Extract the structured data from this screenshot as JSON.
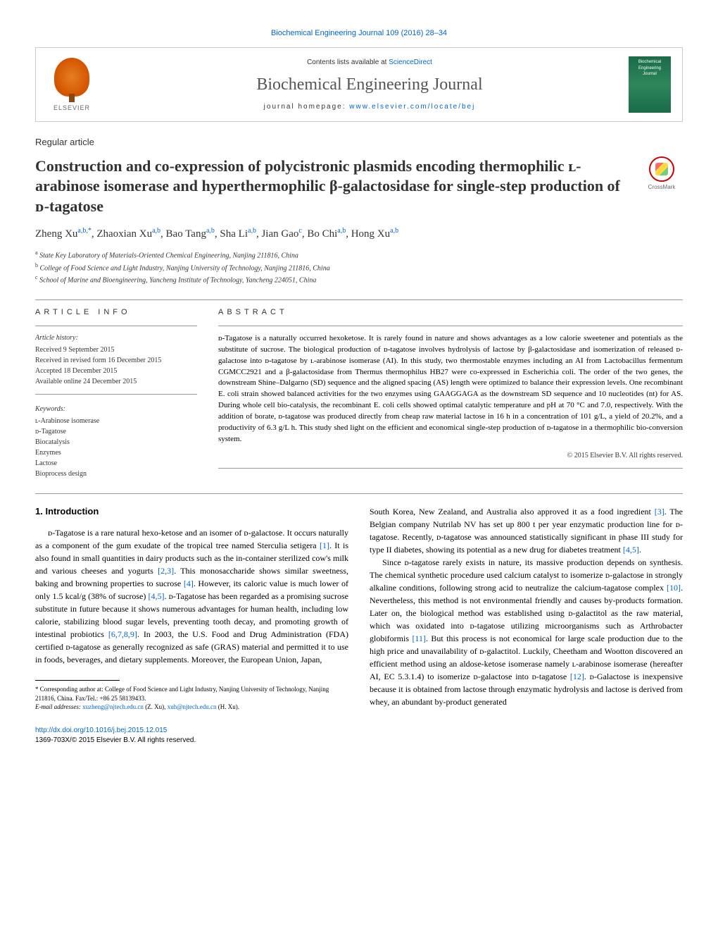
{
  "journal_ref": "Biochemical Engineering Journal 109 (2016) 28–34",
  "header": {
    "contents_prefix": "Contents lists available at ",
    "contents_link": "ScienceDirect",
    "journal_name": "Biochemical Engineering Journal",
    "homepage_prefix": "journal homepage: ",
    "homepage_link": "www.elsevier.com/locate/bej",
    "publisher": "ELSEVIER",
    "cover_text": "Biochemical Engineering Journal"
  },
  "article_type": "Regular article",
  "title": "Construction and co-expression of polycistronic plasmids encoding thermophilic ʟ-arabinose isomerase and hyperthermophilic β-galactosidase for single-step production of ᴅ-tagatose",
  "crossmark": "CrossMark",
  "authors_html": "Zheng Xu<sup>a,b,*</sup>, Zhaoxian Xu<sup>a,b</sup>, Bao Tang<sup>a,b</sup>, Sha Li<sup>a,b</sup>, Jian Gao<sup>c</sup>, Bo Chi<sup>a,b</sup>, Hong Xu<sup>a,b</sup>",
  "affiliations": {
    "a": "State Key Laboratory of Materials-Oriented Chemical Engineering, Nanjing 211816, China",
    "b": "College of Food Science and Light Industry, Nanjing University of Technology, Nanjing 211816, China",
    "c": "School of Marine and Bioengineering, Yancheng Institute of Technology, Yancheng 224051, China"
  },
  "article_info": {
    "heading": "ARTICLE INFO",
    "history_label": "Article history:",
    "received": "Received 9 September 2015",
    "revised": "Received in revised form 16 December 2015",
    "accepted": "Accepted 18 December 2015",
    "online": "Available online 24 December 2015",
    "keywords_label": "Keywords:",
    "keywords": [
      "ʟ-Arabinose isomerase",
      "ᴅ-Tagatose",
      "Biocatalysis",
      "Enzymes",
      "Lactose",
      "Bioprocess design"
    ]
  },
  "abstract": {
    "heading": "ABSTRACT",
    "text": "ᴅ-Tagatose is a naturally occurred hexoketose. It is rarely found in nature and shows advantages as a low calorie sweetener and potentials as the substitute of sucrose. The biological production of ᴅ-tagatose involves hydrolysis of lactose by β-galactosidase and isomerization of released ᴅ-galactose into ᴅ-tagatose by ʟ-arabinose isomerase (AI). In this study, two thermostable enzymes including an AI from Lactobacillus fermentum CGMCC2921 and a β-galactosidase from Thermus thermophilus HB27 were co-expressed in Escherichia coli. The order of the two genes, the downstream Shine–Dalgarno (SD) sequence and the aligned spacing (AS) length were optimized to balance their expression levels. One recombinant E. coli strain showed balanced activities for the two enzymes using GAAGGAGA as the downstream SD sequence and 10 nucleotides (nt) for AS. During whole cell bio-catalysis, the recombinant E. coli cells showed optimal catalytic temperature and pH at 70 °C and 7.0, respectively. With the addition of borate, ᴅ-tagatose was produced directly from cheap raw material lactose in 16 h in a concentration of 101 g/L, a yield of 20.2%, and a productivity of 6.3 g/L h. This study shed light on the efficient and economical single-step production of ᴅ-tagatose in a thermophilic bio-conversion system.",
    "copyright": "© 2015 Elsevier B.V. All rights reserved."
  },
  "body": {
    "section_heading": "1. Introduction",
    "col1_p1": "ᴅ-Tagatose is a rare natural hexo-ketose and an isomer of ᴅ-galactose. It occurs naturally as a component of the gum exudate of the tropical tree named Sterculia setigera [1]. It is also found in small quantities in dairy products such as the in-container sterilized cow's milk and various cheeses and yogurts [2,3]. This monosaccharide shows similar sweetness, baking and browning properties to sucrose [4]. However, its caloric value is much lower of only 1.5 kcal/g (38% of sucrose) [4,5]. ᴅ-Tagatose has been regarded as a promising sucrose substitute in future because it shows numerous advantages for human health, including low calorie, stabilizing blood sugar levels, preventing tooth decay, and promoting growth of intestinal probiotics [6,7,8,9]. In 2003, the U.S. Food and Drug Administration (FDA) certified ᴅ-tagatose as generally recognized as safe (GRAS) material and permitted it to use in foods, beverages, and dietary supplements. Moreover, the European Union, Japan,",
    "col2_p1": "South Korea, New Zealand, and Australia also approved it as a food ingredient [3]. The Belgian company Nutrilab NV has set up 800 t per year enzymatic production line for ᴅ-tagatose. Recently, ᴅ-tagatose was announced statistically significant in phase III study for type II diabetes, showing its potential as a new drug for diabetes treatment [4,5].",
    "col2_p2": "Since ᴅ-tagatose rarely exists in nature, its massive production depends on synthesis. The chemical synthetic procedure used calcium catalyst to isomerize ᴅ-galactose in strongly alkaline conditions, following strong acid to neutralize the calcium-tagatose complex [10]. Nevertheless, this method is not environmental friendly and causes by-products formation. Later on, the biological method was established using ᴅ-galactitol as the raw material, which was oxidated into ᴅ-tagatose utilizing microorganisms such as Arthrobacter globiformis [11]. But this process is not economical for large scale production due to the high price and unavailability of ᴅ-galactitol. Luckily, Cheetham and Wootton discovered an efficient method using an aldose-ketose isomerase namely ʟ-arabinose isomerase (hereafter AI, EC 5.3.1.4) to isomerize ᴅ-galactose into ᴅ-tagatose [12]. ᴅ-Galactose is inexpensive because it is obtained from lactose through enzymatic hydrolysis and lactose is derived from whey, an abundant by-product generated"
  },
  "footnotes": {
    "corresponding": "* Corresponding author at: College of Food Science and Light Industry, Nanjing University of Technology, Nanjing 211816, China. Fax/Tel.: +86 25 58139433.",
    "email_label": "E-mail addresses: ",
    "email1": "xuzheng@njtech.edu.cn",
    "email1_name": " (Z. Xu), ",
    "email2": "xuh@njtech.edu.cn",
    "email2_name": " (H. Xu)."
  },
  "doi": {
    "link": "http://dx.doi.org/10.1016/j.bej.2015.12.015",
    "issn_line": "1369-703X/© 2015 Elsevier B.V. All rights reserved."
  },
  "colors": {
    "link": "#0066cc",
    "text": "#000000",
    "heading": "#333333",
    "rule": "#999999"
  }
}
